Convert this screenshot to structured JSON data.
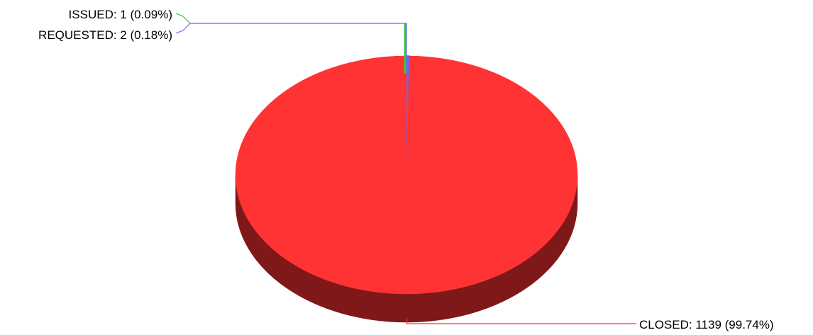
{
  "chart_data": {
    "type": "pie",
    "style": "3d",
    "title": "",
    "slices": [
      {
        "label": "CLOSED: 1139 (99.74%)",
        "name": "CLOSED",
        "value": 1139,
        "percent": 99.74,
        "color": "#ff3333",
        "side_color": "#7f1818"
      },
      {
        "label": "ISSUED: 1 (0.09%)",
        "name": "ISSUED",
        "value": 1,
        "percent": 0.09,
        "color": "#33cc33",
        "side_color": "#1a661a"
      },
      {
        "label": "REQUESTED: 2 (0.18%)",
        "name": "REQUESTED",
        "value": 2,
        "percent": 0.18,
        "color": "#6666ff",
        "side_color": "#333380"
      }
    ],
    "legend": "none",
    "grid": false
  }
}
